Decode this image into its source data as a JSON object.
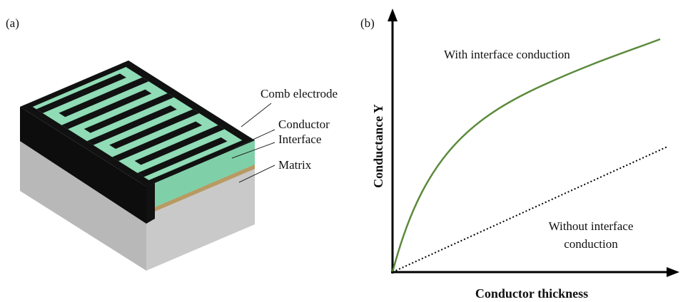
{
  "panel_a": {
    "label": "(a)",
    "annotations": [
      "Comb electrode",
      "Conductor",
      "Interface",
      "Matrix"
    ]
  },
  "panel_b": {
    "label": "(b)",
    "y_axis_label": "Conductance Y",
    "x_axis_label": "Conductor thickness",
    "curves": [
      {
        "label": [
          "With interface conduction"
        ]
      },
      {
        "label": [
          "Without interface",
          "conduction"
        ]
      }
    ]
  }
}
